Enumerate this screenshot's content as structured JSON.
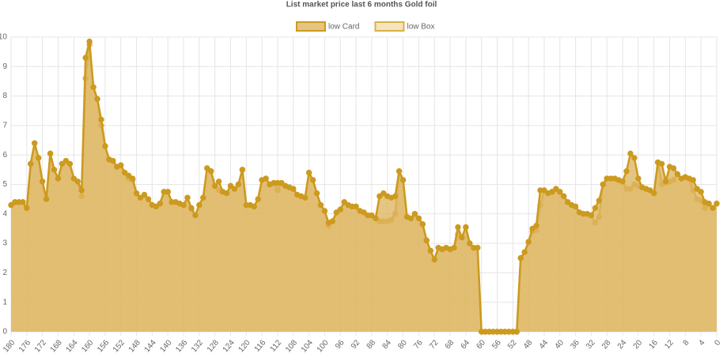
{
  "chart_data": {
    "type": "area",
    "title": "List market price last 6 months Gold foil",
    "categories": [
      180,
      null,
      null,
      null,
      176,
      null,
      null,
      null,
      172,
      null,
      null,
      null,
      168,
      null,
      null,
      null,
      164,
      null,
      null,
      null,
      160,
      null,
      null,
      null,
      156,
      null,
      null,
      null,
      152,
      null,
      null,
      null,
      148,
      null,
      null,
      null,
      144,
      null,
      null,
      null,
      140,
      null,
      null,
      null,
      136,
      null,
      null,
      null,
      132,
      null,
      null,
      null,
      128,
      null,
      null,
      null,
      124,
      null,
      null,
      null,
      120,
      null,
      null,
      null,
      116,
      null,
      null,
      null,
      112,
      null,
      null,
      null,
      108,
      null,
      null,
      null,
      104,
      null,
      null,
      null,
      100,
      null,
      null,
      null,
      96,
      null,
      null,
      null,
      92,
      null,
      null,
      null,
      88,
      null,
      null,
      null,
      84,
      null,
      null,
      null,
      80,
      null,
      null,
      null,
      76,
      null,
      null,
      null,
      72,
      null,
      null,
      null,
      68,
      null,
      null,
      null,
      64,
      null,
      null,
      null,
      60,
      null,
      null,
      null,
      56,
      null,
      null,
      null,
      52,
      null,
      null,
      null,
      48,
      null,
      null,
      null,
      44,
      null,
      null,
      null,
      40,
      null,
      null,
      null,
      36,
      null,
      null,
      null,
      32,
      null,
      null,
      null,
      28,
      null,
      null,
      null,
      24,
      null,
      null,
      null,
      20,
      null,
      null,
      null,
      16,
      null,
      null,
      null,
      12,
      null,
      null,
      null,
      8,
      null,
      null,
      null,
      4,
      null,
      null,
      null,
      0
    ],
    "series": [
      {
        "name": "low Card",
        "color": "#cc9a1e",
        "fill": "rgba(220,178,90,0.75)",
        "values": [
          4.3,
          4.4,
          4.4,
          4.4,
          4.2,
          5.7,
          6.4,
          5.9,
          5.1,
          4.5,
          6.05,
          5.5,
          5.2,
          5.7,
          5.8,
          5.7,
          5.2,
          5.1,
          4.8,
          9.3,
          9.85,
          8.3,
          7.9,
          7.2,
          6.3,
          5.85,
          5.8,
          5.6,
          5.65,
          5.4,
          5.3,
          5.2,
          4.7,
          4.55,
          4.65,
          4.5,
          4.3,
          4.25,
          4.35,
          4.75,
          4.75,
          4.4,
          4.4,
          4.35,
          4.3,
          4.55,
          4.2,
          3.95,
          4.3,
          4.55,
          5.55,
          5.45,
          4.95,
          5.1,
          4.75,
          4.7,
          4.95,
          4.85,
          5.0,
          5.5,
          4.3,
          4.3,
          4.25,
          4.5,
          5.15,
          5.2,
          5.0,
          5.05,
          5.05,
          5.05,
          4.95,
          4.9,
          4.85,
          4.65,
          4.6,
          4.55,
          5.4,
          5.15,
          4.7,
          4.3,
          4.1,
          3.7,
          3.75,
          4.05,
          4.15,
          4.4,
          4.3,
          4.25,
          4.25,
          4.1,
          4.05,
          3.95,
          3.95,
          3.85,
          4.6,
          4.7,
          4.6,
          4.55,
          4.6,
          5.45,
          5.15,
          3.9,
          3.85,
          4.0,
          3.85,
          3.65,
          3.1,
          2.75,
          2.45,
          2.85,
          2.8,
          2.85,
          2.8,
          2.85,
          3.55,
          3.2,
          3.55,
          3.0,
          2.85,
          2.85,
          0,
          0,
          0,
          0,
          0,
          0,
          0,
          0,
          0,
          0,
          2.5,
          2.7,
          3.05,
          3.5,
          3.6,
          4.8,
          4.8,
          4.7,
          4.75,
          4.85,
          4.75,
          4.6,
          4.4,
          4.3,
          4.25,
          4.05,
          4.0,
          4.0,
          3.95,
          4.2,
          4.45,
          5.0,
          5.2,
          5.2,
          5.2,
          5.15,
          5.1,
          5.45,
          6.05,
          5.9,
          5.2,
          4.9,
          4.85,
          4.8,
          4.7,
          5.75,
          5.7,
          5.1,
          5.6,
          5.55,
          5.35,
          5.2,
          5.25,
          5.2,
          5.15,
          4.85,
          4.75,
          4.4,
          4.35,
          4.2,
          4.35
        ]
      },
      {
        "name": "low Box",
        "color": "#d9b04a",
        "fill": "rgba(235,205,140,0.55)",
        "values": [
          4.3,
          4.4,
          4.4,
          4.4,
          4.2,
          5.7,
          6.4,
          5.9,
          5.1,
          4.5,
          6.05,
          5.5,
          5.2,
          5.7,
          5.8,
          5.7,
          5.2,
          5.1,
          4.6,
          8.6,
          9.75,
          8.3,
          7.9,
          7.0,
          6.3,
          5.85,
          5.8,
          5.6,
          5.65,
          5.4,
          5.2,
          5.15,
          4.7,
          4.55,
          4.65,
          4.5,
          4.3,
          4.25,
          4.35,
          4.75,
          4.75,
          4.4,
          4.4,
          4.35,
          4.3,
          4.55,
          4.15,
          3.95,
          4.3,
          4.55,
          5.55,
          5.45,
          4.95,
          4.8,
          4.75,
          4.7,
          4.95,
          4.85,
          5.0,
          5.5,
          4.3,
          4.3,
          4.25,
          4.5,
          5.15,
          5.2,
          5.0,
          5.05,
          4.8,
          5.05,
          4.95,
          4.9,
          4.85,
          4.65,
          4.6,
          4.55,
          5.4,
          5.15,
          4.7,
          4.3,
          4.1,
          3.6,
          3.75,
          4.05,
          4.15,
          4.4,
          4.3,
          4.25,
          4.25,
          4.1,
          4.05,
          3.95,
          3.95,
          3.85,
          3.75,
          3.75,
          3.75,
          3.8,
          4.0,
          5.45,
          5.15,
          3.9,
          3.85,
          4.0,
          3.85,
          3.65,
          3.1,
          2.75,
          2.45,
          2.85,
          2.8,
          2.85,
          2.8,
          2.85,
          3.3,
          3.2,
          3.55,
          3.0,
          2.85,
          2.85,
          0,
          0,
          0,
          0,
          0,
          0,
          0,
          0,
          0,
          0,
          2.5,
          2.7,
          3.05,
          3.4,
          3.45,
          4.3,
          4.8,
          4.7,
          4.75,
          4.85,
          4.75,
          4.6,
          4.4,
          4.3,
          4.25,
          4.05,
          4.0,
          4.0,
          3.95,
          3.7,
          3.9,
          5.0,
          5.2,
          5.2,
          5.2,
          5.15,
          5.1,
          4.85,
          4.85,
          5.0,
          4.95,
          4.9,
          4.85,
          4.8,
          4.7,
          5.75,
          5.0,
          5.05,
          5.1,
          5.15,
          5.35,
          5.2,
          5.25,
          5.2,
          4.8,
          4.5,
          4.45,
          4.2,
          4.35,
          4.2,
          4.35
        ]
      }
    ],
    "ylim": [
      0,
      10
    ],
    "yticks": [
      0,
      1,
      2,
      3,
      4,
      5,
      6,
      7,
      8,
      9,
      10
    ],
    "grid": true,
    "legend": "top"
  }
}
